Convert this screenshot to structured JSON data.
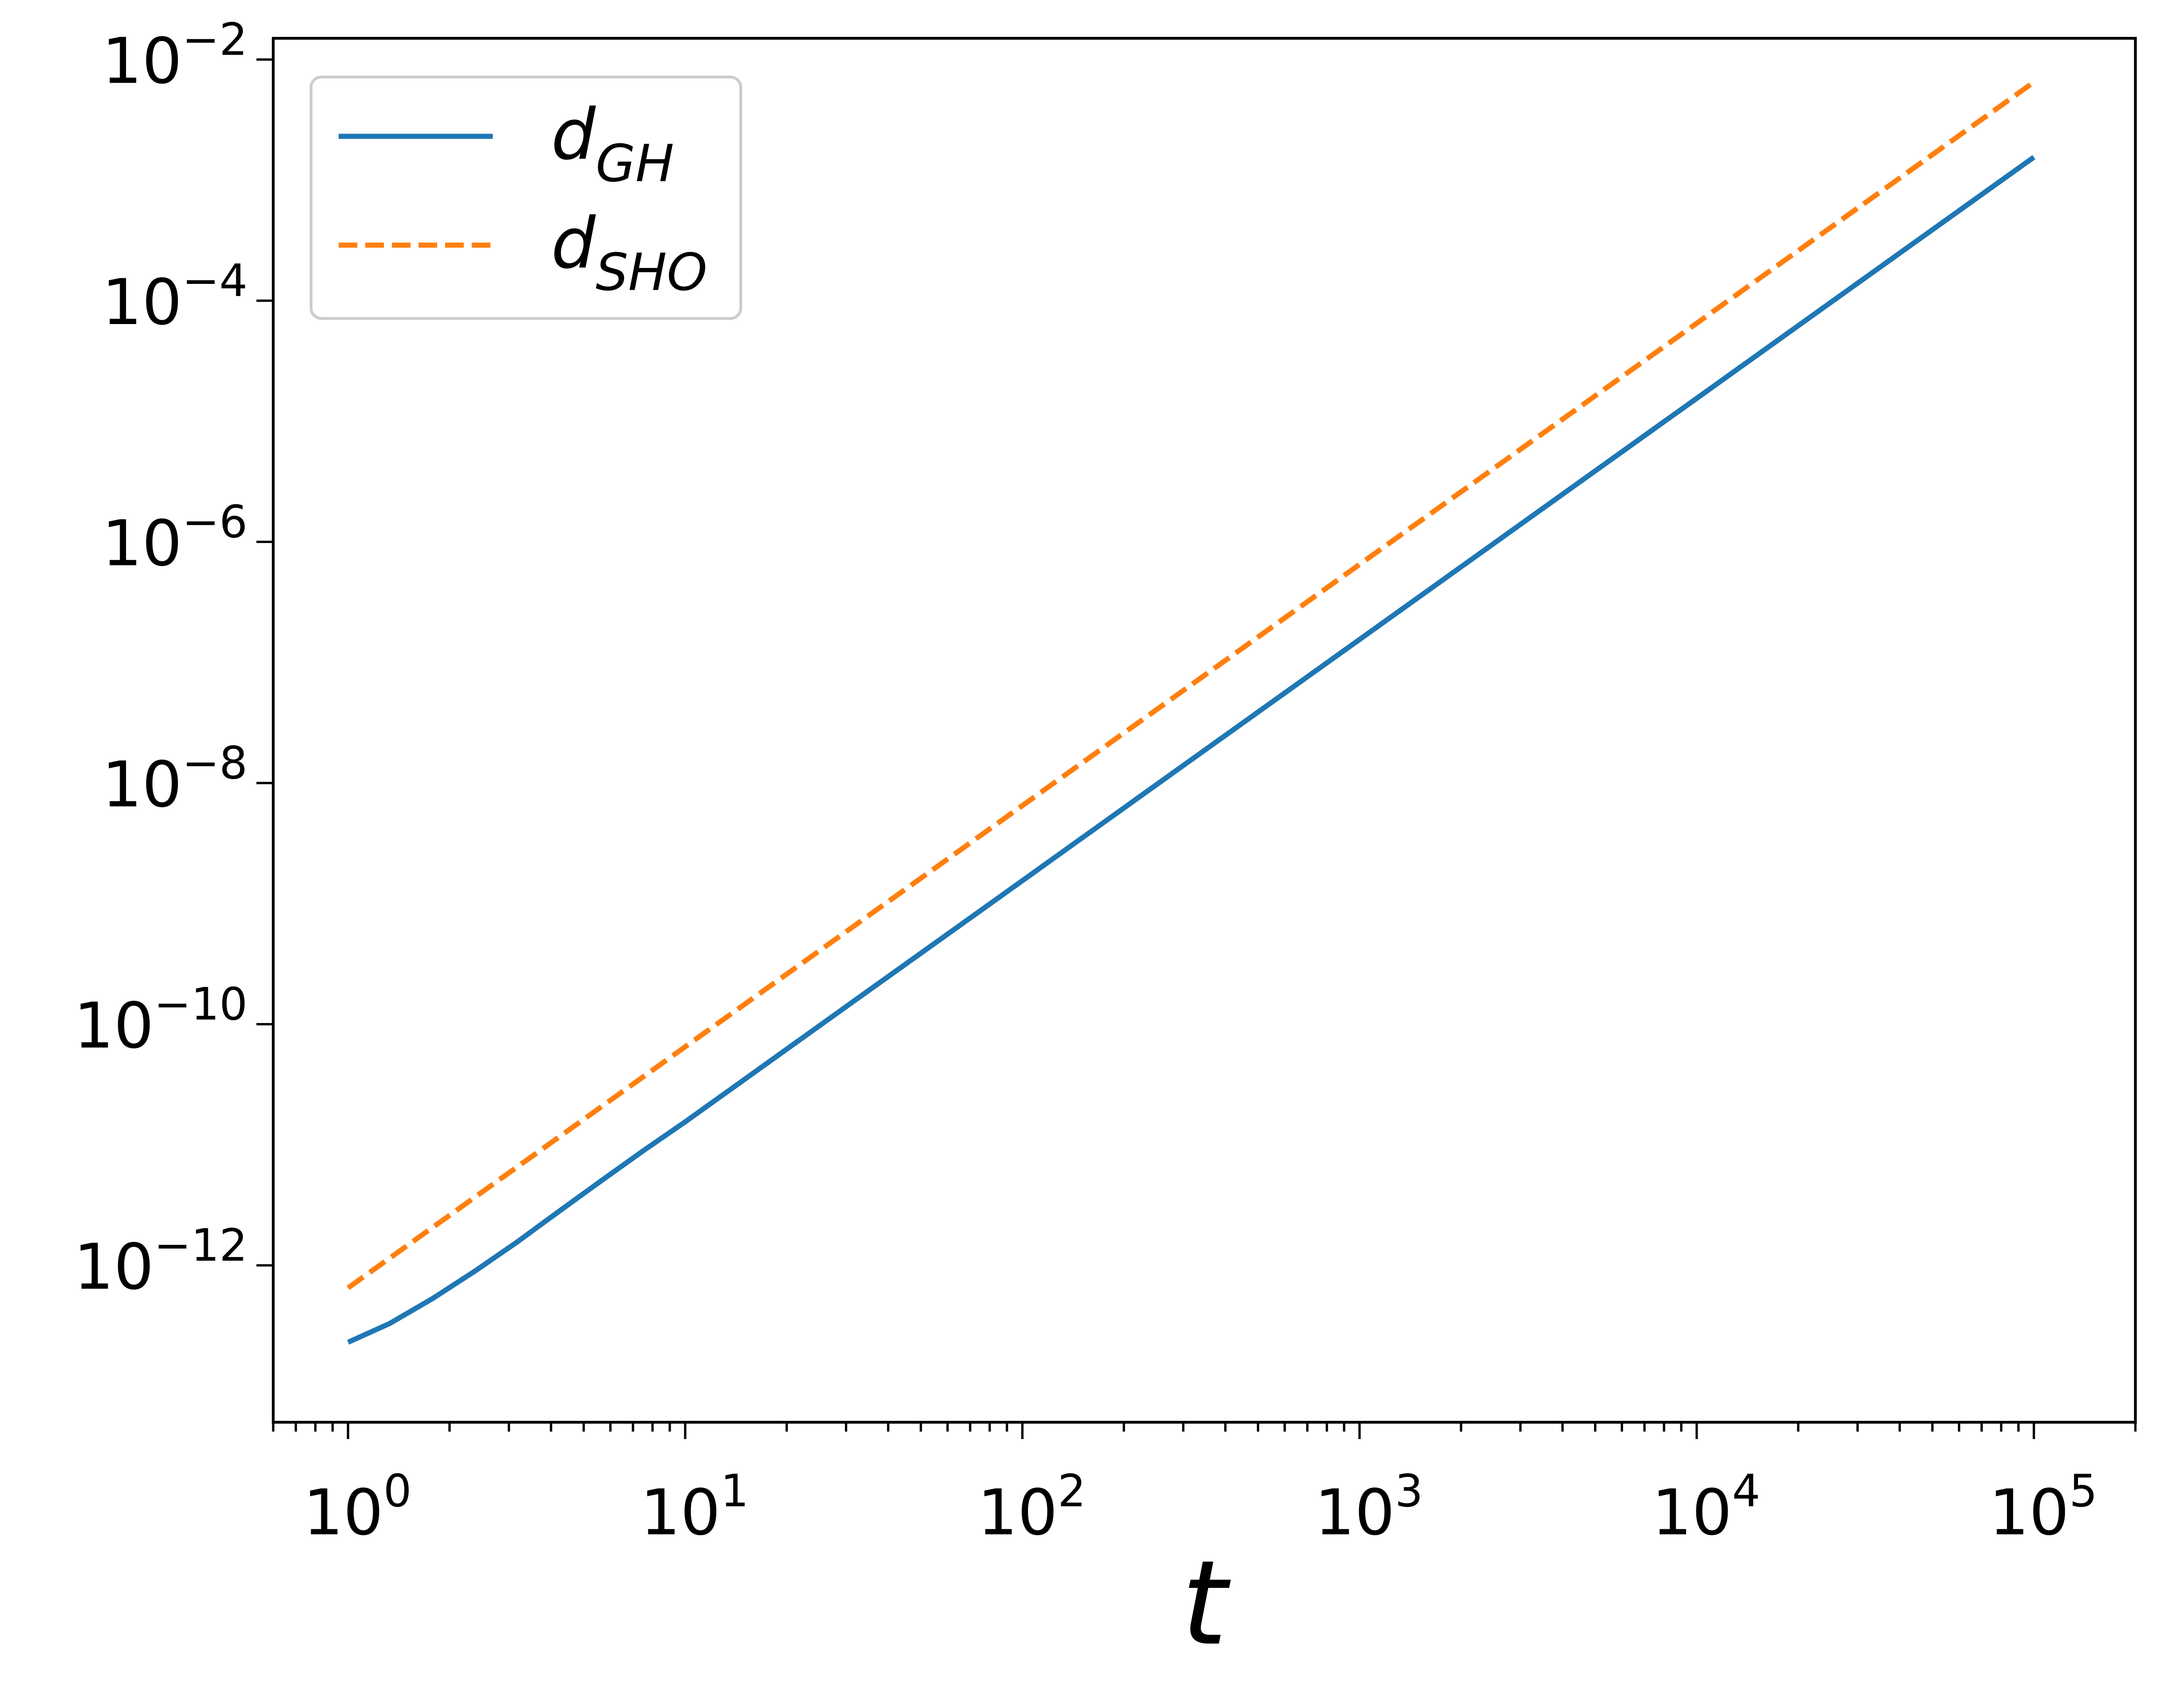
{
  "chart_data": {
    "type": "line",
    "title": "",
    "xlabel": "t",
    "ylabel": "",
    "xscale": "log",
    "yscale": "log",
    "xlim": [
      0.6,
      200000
    ],
    "ylim": [
      5e-14,
      0.015
    ],
    "grid": false,
    "legend_position": "top-left",
    "x_ticks": [
      {
        "value": 1,
        "base": "10",
        "exp": "0"
      },
      {
        "value": 10,
        "base": "10",
        "exp": "1"
      },
      {
        "value": 100,
        "base": "10",
        "exp": "2"
      },
      {
        "value": 1000,
        "base": "10",
        "exp": "3"
      },
      {
        "value": 10000,
        "base": "10",
        "exp": "4"
      },
      {
        "value": 100000,
        "base": "10",
        "exp": "5"
      }
    ],
    "y_ticks": [
      {
        "value": 1e-12,
        "base": "10",
        "exp": "−12"
      },
      {
        "value": 1e-10,
        "base": "10",
        "exp": "−10"
      },
      {
        "value": 1e-08,
        "base": "10",
        "exp": "−8"
      },
      {
        "value": 1e-06,
        "base": "10",
        "exp": "−6"
      },
      {
        "value": 0.0001,
        "base": "10",
        "exp": "−4"
      },
      {
        "value": 0.01,
        "base": "10",
        "exp": "−2"
      }
    ],
    "series": [
      {
        "name": "d_GH",
        "legend_main": "d",
        "legend_sub": "GH",
        "color": "#1f77b4",
        "style": "solid",
        "x": [
          1,
          1.33,
          1.78,
          2.37,
          3.16,
          4.22,
          5.62,
          7.5,
          10,
          31.6,
          100,
          316,
          1000,
          3162,
          10000,
          31623,
          100000
        ],
        "y": [
          2.3e-13,
          3.3e-13,
          5.3e-13,
          8.9e-13,
          1.55e-12,
          2.8e-12,
          5e-12,
          8.9e-12,
          1.55e-11,
          1.55e-10,
          1.55e-09,
          1.55e-08,
          1.55e-07,
          1.55e-06,
          1.55e-05,
          0.000155,
          0.00155
        ]
      },
      {
        "name": "d_SHO",
        "legend_main": "d",
        "legend_sub": "SHO",
        "color": "#ff7f0e",
        "style": "dashed",
        "x": [
          1,
          10,
          100,
          1000,
          10000,
          100000
        ],
        "y": [
          6.5e-13,
          6.5e-11,
          6.5e-09,
          6.5e-07,
          6.5e-05,
          0.0065
        ]
      }
    ]
  }
}
